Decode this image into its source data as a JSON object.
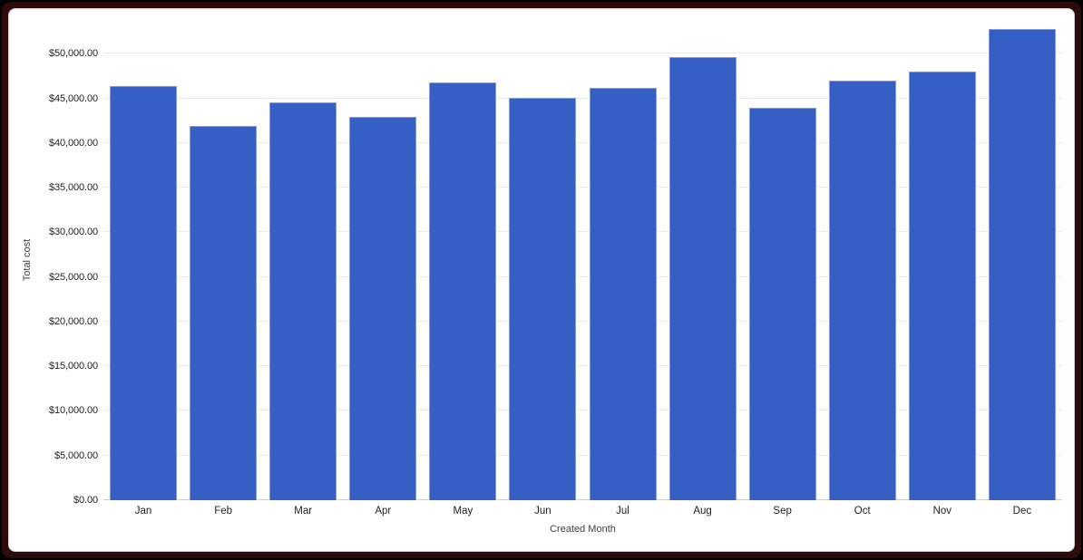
{
  "frame": {
    "outer_color": "#000000",
    "border_color": "#2e0c0c",
    "card_background": "#ffffff",
    "card_edge_color": "#cfd1d4"
  },
  "chart_data": {
    "type": "bar",
    "title": "",
    "xlabel": "Created Month",
    "ylabel": "Total cost",
    "categories": [
      "Jan",
      "Feb",
      "Mar",
      "Apr",
      "May",
      "Jun",
      "Jul",
      "Aug",
      "Sep",
      "Oct",
      "Nov",
      "Dec"
    ],
    "values": [
      46400,
      41900,
      44500,
      42900,
      46800,
      45100,
      46200,
      49600,
      43900,
      47000,
      48000,
      52800
    ],
    "value_format": "$#,##0.00",
    "ylim": [
      0,
      55000
    ],
    "ytick_step": 5000,
    "ytick_labels": [
      "$0.00",
      "$5,000.00",
      "$10,000.00",
      "$15,000.00",
      "$20,000.00",
      "$25,000.00",
      "$30,000.00",
      "$35,000.00",
      "$40,000.00",
      "$45,000.00",
      "$50,000.00"
    ],
    "grid": true,
    "legend_position": "none",
    "bar_color": "#355FC5",
    "bar_edge_color": "#7E9BDE",
    "grid_color": "#ebebeb",
    "baseline_color": "#c9cdd1",
    "tick_text_color": "#1f2023",
    "axis_title_color": "#3c4043"
  }
}
